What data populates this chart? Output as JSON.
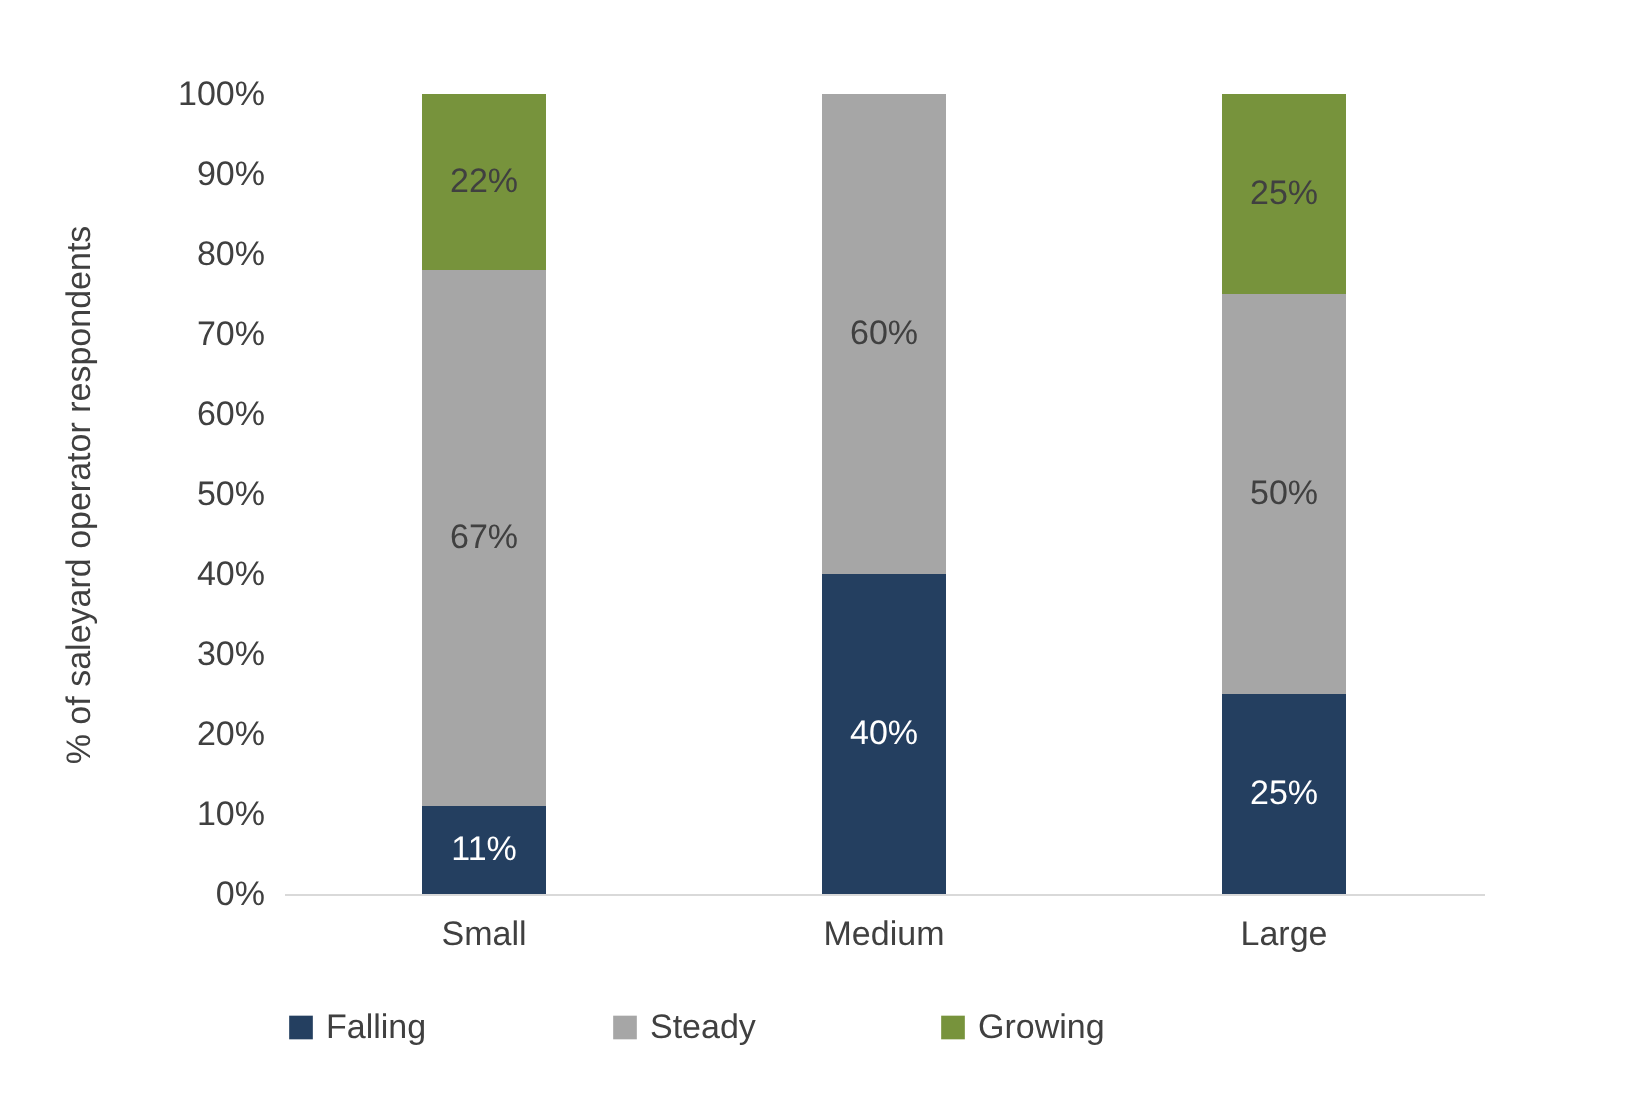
{
  "chart_data": {
    "type": "bar",
    "stacked": true,
    "ylabel": "%     of saleyard operator respondents",
    "categories": [
      "Small",
      "Medium",
      "Large"
    ],
    "series": [
      {
        "name": "Falling",
        "color": "#243f60",
        "values": [
          11,
          40,
          25
        ],
        "value_labels": [
          "11%",
          "40%",
          "25%"
        ]
      },
      {
        "name": "Steady",
        "color": "#a6a6a6",
        "values": [
          67,
          60,
          50
        ],
        "value_labels": [
          "67%",
          "60%",
          "50%"
        ]
      },
      {
        "name": "Growing",
        "color": "#77933c",
        "values": [
          22,
          0,
          25
        ],
        "value_labels": [
          "22%",
          null,
          "25%"
        ]
      }
    ],
    "ylim": [
      0,
      100
    ],
    "yticks": [
      {
        "value": 0,
        "label": "0%"
      },
      {
        "value": 10,
        "label": "10%"
      },
      {
        "value": 20,
        "label": "20%"
      },
      {
        "value": 30,
        "label": "30%"
      },
      {
        "value": 40,
        "label": "40%"
      },
      {
        "value": 50,
        "label": "50%"
      },
      {
        "value": 60,
        "label": "60%"
      },
      {
        "value": 70,
        "label": "70%"
      },
      {
        "value": 80,
        "label": "80%"
      },
      {
        "value": 90,
        "label": "90%"
      },
      {
        "value": 100,
        "label": "100%"
      }
    ],
    "grid": false,
    "legend": "bottom"
  }
}
